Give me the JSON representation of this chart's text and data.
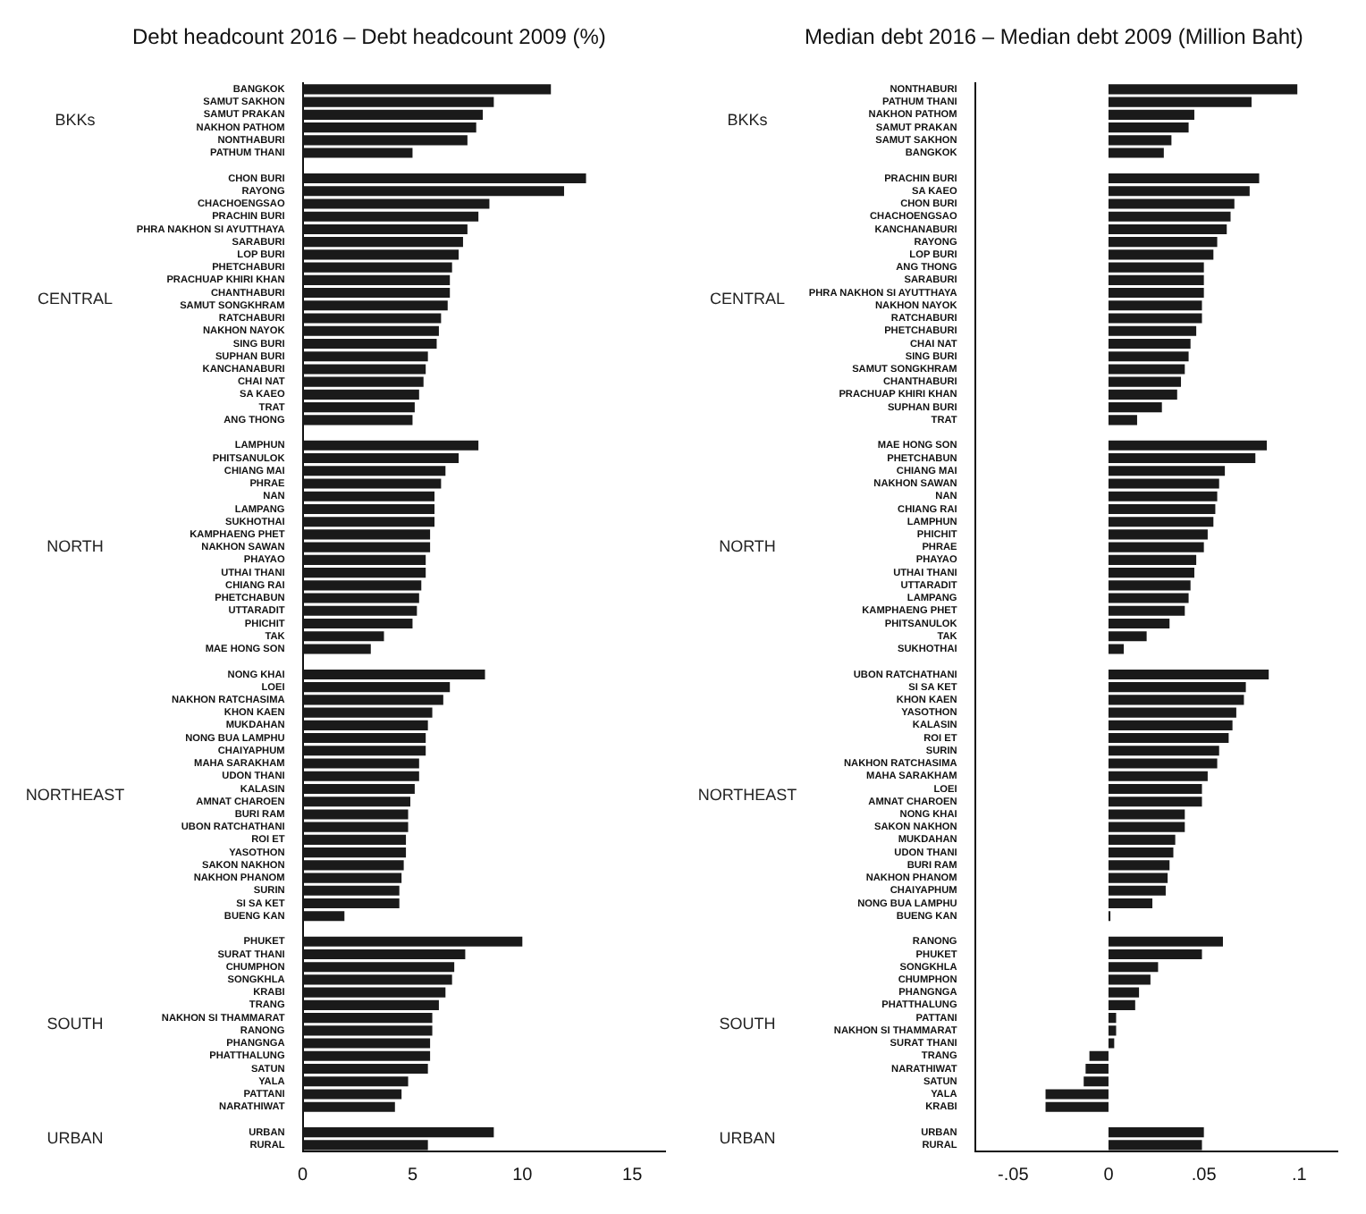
{
  "chart_data": [
    {
      "type": "bar",
      "orientation": "horizontal",
      "title": "Debt headcount 2016 – Debt headcount 2009 (%)",
      "color": "#1a1a1a",
      "categories": [
        "BANGKOK",
        "SAMUT SAKHON",
        "SAMUT PRAKAN",
        "NAKHON PATHOM",
        "NONTHABURI",
        "PATHUM THANI",
        null,
        "CHON BURI",
        "RAYONG",
        "CHACHOENGSAO",
        "PRACHIN BURI",
        "PHRA NAKHON SI AYUTTHAYA",
        "SARABURI",
        "LOP BURI",
        "PHETCHABURI",
        "PRACHUAP KHIRI KHAN",
        "CHANTHABURI",
        "SAMUT SONGKHRAM",
        "RATCHABURI",
        "NAKHON NAYOK",
        "SING BURI",
        "SUPHAN BURI",
        "KANCHANABURI",
        "CHAI NAT",
        "SA KAEO",
        "TRAT",
        "ANG THONG",
        null,
        "LAMPHUN",
        "PHITSANULOK",
        "CHIANG MAI",
        "PHRAE",
        "NAN",
        "LAMPANG",
        "SUKHOTHAI",
        "KAMPHAENG PHET",
        "NAKHON SAWAN",
        "PHAYAO",
        "UTHAI THANI",
        "CHIANG RAI",
        "PHETCHABUN",
        "UTTARADIT",
        "PHICHIT",
        "TAK",
        "MAE HONG SON",
        null,
        "NONG KHAI",
        "LOEI",
        "NAKHON RATCHASIMA",
        "KHON KAEN",
        "MUKDAHAN",
        "NONG BUA LAMPHU",
        "CHAIYAPHUM",
        "MAHA SARAKHAM",
        "UDON THANI",
        "KALASIN",
        "AMNAT CHAROEN",
        "BURI RAM",
        "UBON RATCHATHANI",
        "ROI ET",
        "YASOTHON",
        "SAKON NAKHON",
        "NAKHON PHANOM",
        "SURIN",
        "SI SA KET",
        "BUENG KAN",
        null,
        "PHUKET",
        "SURAT THANI",
        "CHUMPHON",
        "SONGKHLA",
        "KRABI",
        "TRANG",
        "NAKHON SI THAMMARAT",
        "RANONG",
        "PHANGNGA",
        "PHATTHALUNG",
        "SATUN",
        "YALA",
        "PATTANI",
        "NARATHIWAT",
        null,
        "URBAN",
        "RURAL"
      ],
      "values": [
        11.3,
        8.7,
        8.2,
        7.9,
        7.5,
        5.0,
        null,
        12.9,
        11.9,
        8.5,
        8.0,
        7.5,
        7.3,
        7.1,
        6.8,
        6.7,
        6.7,
        6.6,
        6.3,
        6.2,
        6.1,
        5.7,
        5.6,
        5.5,
        5.3,
        5.1,
        5.0,
        null,
        8.0,
        7.1,
        6.5,
        6.3,
        6.0,
        6.0,
        6.0,
        5.8,
        5.8,
        5.6,
        5.6,
        5.4,
        5.3,
        5.2,
        5.0,
        3.7,
        3.1,
        null,
        8.3,
        6.7,
        6.4,
        5.9,
        5.7,
        5.6,
        5.6,
        5.3,
        5.3,
        5.1,
        4.9,
        4.8,
        4.8,
        4.7,
        4.7,
        4.6,
        4.5,
        4.4,
        4.4,
        1.9,
        null,
        10.0,
        7.4,
        6.9,
        6.8,
        6.5,
        6.2,
        5.9,
        5.9,
        5.8,
        5.8,
        5.7,
        4.8,
        4.5,
        4.2,
        null,
        8.7,
        5.7
      ],
      "xlim": [
        0,
        16.5
      ],
      "xticks": [
        0,
        5,
        10,
        15
      ],
      "annotations": [
        "BKKs",
        "CENTRAL",
        "NORTH",
        "NORTHEAST",
        "SOUTH",
        "URBAN"
      ]
    },
    {
      "type": "bar",
      "orientation": "horizontal",
      "title": "Median debt 2016 – Median debt 2009 (Million Baht)",
      "color": "#1a1a1a",
      "categories": [
        "NONTHABURI",
        "PATHUM THANI",
        "NAKHON PATHOM",
        "SAMUT PRAKAN",
        "SAMUT SAKHON",
        "BANGKOK",
        null,
        "PRACHIN BURI",
        "SA KAEO",
        "CHON BURI",
        "CHACHOENGSAO",
        "KANCHANABURI",
        "RAYONG",
        "LOP BURI",
        "ANG THONG",
        "SARABURI",
        "PHRA NAKHON SI AYUTTHAYA",
        "NAKHON NAYOK",
        "RATCHABURI",
        "PHETCHABURI",
        "CHAI NAT",
        "SING BURI",
        "SAMUT SONGKHRAM",
        "CHANTHABURI",
        "PRACHUAP KHIRI KHAN",
        "SUPHAN BURI",
        "TRAT",
        null,
        "MAE HONG SON",
        "PHETCHABUN",
        "CHIANG MAI",
        "NAKHON SAWAN",
        "NAN",
        "CHIANG RAI",
        "LAMPHUN",
        "PHICHIT",
        "PHRAE",
        "PHAYAO",
        "UTHAI THANI",
        "UTTARADIT",
        "LAMPANG",
        "KAMPHAENG PHET",
        "PHITSANULOK",
        "TAK",
        "SUKHOTHAI",
        null,
        "UBON RATCHATHANI",
        "SI SA KET",
        "KHON KAEN",
        "YASOTHON",
        "KALASIN",
        "ROI ET",
        "SURIN",
        "NAKHON RATCHASIMA",
        "MAHA SARAKHAM",
        "LOEI",
        "AMNAT CHAROEN",
        "NONG KHAI",
        "SAKON NAKHON",
        "MUKDAHAN",
        "UDON THANI",
        "BURI RAM",
        "NAKHON PHANOM",
        "CHAIYAPHUM",
        "NONG BUA LAMPHU",
        "BUENG KAN",
        null,
        "RANONG",
        "PHUKET",
        "SONGKHLA",
        "CHUMPHON",
        "PHANGNGA",
        "PHATTHALUNG",
        "PATTANI",
        "NAKHON SI THAMMARAT",
        "SURAT THANI",
        "TRANG",
        "NARATHIWAT",
        "SATUN",
        "YALA",
        "KRABI",
        null,
        "URBAN",
        "RURAL"
      ],
      "values": [
        0.099,
        0.075,
        0.045,
        0.042,
        0.033,
        0.029,
        null,
        0.079,
        0.074,
        0.066,
        0.064,
        0.062,
        0.057,
        0.055,
        0.05,
        0.05,
        0.05,
        0.049,
        0.049,
        0.046,
        0.043,
        0.042,
        0.04,
        0.038,
        0.036,
        0.028,
        0.015,
        null,
        0.083,
        0.077,
        0.061,
        0.058,
        0.057,
        0.056,
        0.055,
        0.052,
        0.05,
        0.046,
        0.045,
        0.043,
        0.042,
        0.04,
        0.032,
        0.02,
        0.008,
        null,
        0.084,
        0.072,
        0.071,
        0.067,
        0.065,
        0.063,
        0.058,
        0.057,
        0.052,
        0.049,
        0.049,
        0.04,
        0.04,
        0.035,
        0.034,
        0.032,
        0.031,
        0.03,
        0.023,
        0.001,
        null,
        0.06,
        0.049,
        0.026,
        0.022,
        0.016,
        0.014,
        0.004,
        0.004,
        0.003,
        -0.01,
        -0.012,
        -0.013,
        -0.033,
        -0.033,
        null,
        0.05,
        0.049
      ],
      "xlim": [
        -0.07,
        0.12
      ],
      "xticks": [
        {
          "value": -0.05,
          "label": "-.05"
        },
        0,
        {
          "value": 0.05,
          "label": ".05"
        },
        {
          "value": 0.1,
          "label": ".1"
        }
      ],
      "annotations": [
        "BKKs",
        "CENTRAL",
        "NORTH",
        "NORTHEAST",
        "SOUTH",
        "URBAN"
      ]
    }
  ]
}
